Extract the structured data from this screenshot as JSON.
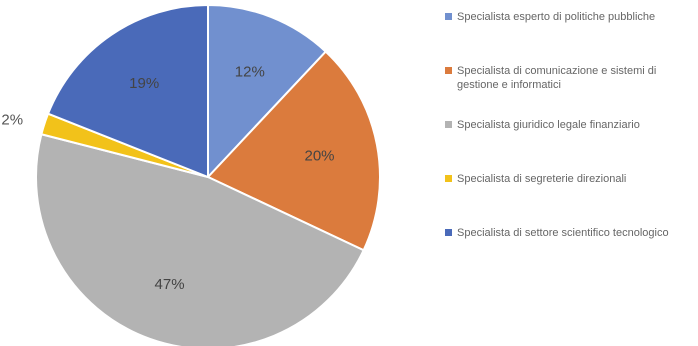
{
  "chart_data": {
    "type": "pie",
    "title": "",
    "slices": [
      {
        "label": "Specialista esperto di politiche pubbliche",
        "value": 12,
        "display": "12%",
        "color": "#7190cf"
      },
      {
        "label": "Specialista di comunicazione e sistemi di gestione e informatici",
        "value": 20,
        "display": "20%",
        "color": "#db7b3d"
      },
      {
        "label": "Specialista giuridico legale finanziario",
        "value": 47,
        "display": "47%",
        "color": "#b3b3b3"
      },
      {
        "label": "Specialista di segreterie direzionali",
        "value": 2,
        "display": "2%",
        "color": "#f2c21a"
      },
      {
        "label": "Specialista di settore scientifico tecnologico",
        "value": 19,
        "display": "19%",
        "color": "#4a6ab9"
      }
    ],
    "start_angle_deg": 0,
    "direction": "clockwise",
    "legend_position": "right"
  }
}
